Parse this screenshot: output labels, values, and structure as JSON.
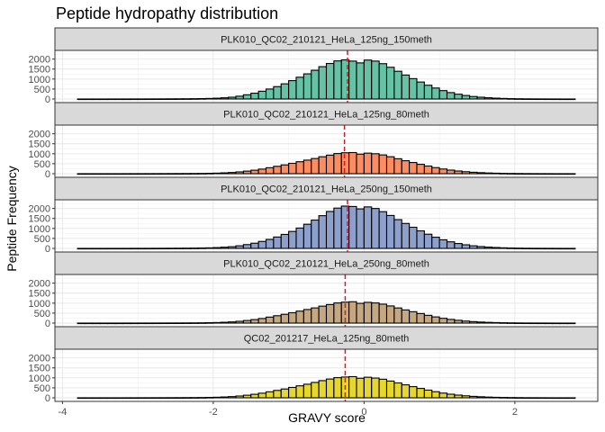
{
  "chart_data": {
    "type": "bar",
    "title": "Peptide hydropathy distribution",
    "xlabel": "GRAVY score",
    "ylabel": "Peptide Frequency",
    "xlim": [
      -4.1,
      3.1
    ],
    "ylim": [
      0,
      2300
    ],
    "x_ticks": [
      -4,
      -2,
      0,
      2
    ],
    "x_tick_labels": [
      "-4",
      "-2",
      "0",
      "2"
    ],
    "y_ticks": [
      0,
      500,
      1000,
      1500,
      2000
    ],
    "y_tick_labels": [
      "0",
      "500",
      "1000",
      "1500",
      "2000"
    ],
    "bin_starts": [
      -3.8,
      -3.7,
      -3.6,
      -3.5,
      -3.4,
      -3.3,
      -3.2,
      -3.1,
      -3.0,
      -2.9,
      -2.8,
      -2.7,
      -2.6,
      -2.5,
      -2.4,
      -2.3,
      -2.2,
      -2.1,
      -2.0,
      -1.9,
      -1.8,
      -1.7,
      -1.6,
      -1.5,
      -1.4,
      -1.3,
      -1.2,
      -1.1,
      -1.0,
      -0.9,
      -0.8,
      -0.7,
      -0.6,
      -0.5,
      -0.4,
      -0.3,
      -0.2,
      -0.1,
      0.0,
      0.1,
      0.2,
      0.3,
      0.4,
      0.5,
      0.6,
      0.7,
      0.8,
      0.9,
      1.0,
      1.1,
      1.2,
      1.3,
      1.4,
      1.5,
      1.6,
      1.7,
      1.8,
      1.9,
      2.0,
      2.1,
      2.2,
      2.3,
      2.4,
      2.5,
      2.6,
      2.7
    ],
    "bin_width": 0.1,
    "mean_line_style": "red dashed vertical line",
    "series": [
      {
        "name": "PLK010_QC02_210121_HeLa_125ng_150meth",
        "color": "#66c2a5",
        "mean": -0.22,
        "values": [
          1,
          1,
          1,
          1,
          2,
          2,
          2,
          3,
          3,
          4,
          5,
          6,
          8,
          10,
          12,
          15,
          20,
          28,
          40,
          60,
          90,
          140,
          210,
          290,
          390,
          500,
          620,
          760,
          920,
          1090,
          1260,
          1440,
          1620,
          1780,
          1910,
          1960,
          1900,
          1810,
          1950,
          1900,
          1770,
          1590,
          1390,
          1200,
          1020,
          850,
          690,
          550,
          420,
          320,
          240,
          175,
          125,
          90,
          62,
          42,
          28,
          18,
          12,
          8,
          5,
          4,
          3,
          2,
          1,
          1
        ]
      },
      {
        "name": "PLK010_QC02_210121_HeLa_125ng_80meth",
        "color": "#fc8d62",
        "mean": -0.26,
        "values": [
          1,
          1,
          1,
          1,
          1,
          1,
          2,
          2,
          3,
          3,
          4,
          5,
          6,
          7,
          9,
          11,
          14,
          20,
          28,
          42,
          60,
          90,
          130,
          175,
          230,
          300,
          370,
          440,
          520,
          600,
          680,
          760,
          850,
          930,
          1010,
          1050,
          1060,
          980,
          1030,
          1000,
          940,
          850,
          750,
          650,
          560,
          470,
          385,
          305,
          235,
          180,
          135,
          100,
          72,
          52,
          36,
          25,
          17,
          12,
          8,
          5,
          4,
          3,
          2,
          1,
          1,
          1
        ]
      },
      {
        "name": "PLK010_QC02_210121_HeLa_250ng_150meth",
        "color": "#8da0cb",
        "mean": -0.22,
        "values": [
          1,
          1,
          1,
          1,
          2,
          2,
          2,
          3,
          3,
          4,
          5,
          6,
          8,
          10,
          12,
          15,
          20,
          28,
          40,
          60,
          85,
          130,
          190,
          260,
          350,
          450,
          570,
          700,
          850,
          1020,
          1210,
          1420,
          1640,
          1850,
          2020,
          2120,
          2100,
          1980,
          2080,
          2000,
          1840,
          1650,
          1440,
          1250,
          1060,
          880,
          710,
          560,
          430,
          330,
          245,
          180,
          130,
          92,
          64,
          44,
          29,
          19,
          13,
          8,
          5,
          4,
          3,
          2,
          1,
          1
        ]
      },
      {
        "name": "PLK010_QC02_210121_HeLa_250ng_80meth",
        "color": "#c5a882",
        "mean": -0.25,
        "values": [
          1,
          1,
          1,
          1,
          1,
          1,
          2,
          2,
          3,
          3,
          4,
          5,
          6,
          7,
          9,
          11,
          14,
          20,
          28,
          42,
          60,
          90,
          130,
          175,
          230,
          300,
          370,
          440,
          520,
          600,
          680,
          760,
          850,
          930,
          1010,
          1050,
          1070,
          990,
          1040,
          1010,
          950,
          860,
          760,
          660,
          570,
          480,
          390,
          310,
          240,
          185,
          140,
          102,
          74,
          53,
          37,
          26,
          18,
          12,
          8,
          5,
          4,
          3,
          2,
          1,
          1,
          1
        ]
      },
      {
        "name": "QC02_201217_HeLa_125ng_80meth",
        "color": "#e5d630",
        "mean": -0.25,
        "values": [
          1,
          1,
          1,
          1,
          1,
          1,
          2,
          2,
          3,
          3,
          4,
          5,
          6,
          7,
          9,
          11,
          14,
          20,
          28,
          42,
          60,
          90,
          130,
          175,
          230,
          300,
          370,
          440,
          520,
          600,
          680,
          770,
          860,
          940,
          1010,
          1040,
          1060,
          980,
          1030,
          990,
          930,
          840,
          745,
          650,
          560,
          470,
          385,
          305,
          235,
          180,
          135,
          100,
          72,
          52,
          36,
          25,
          17,
          12,
          8,
          5,
          4,
          3,
          2,
          1,
          1,
          1
        ]
      }
    ]
  }
}
